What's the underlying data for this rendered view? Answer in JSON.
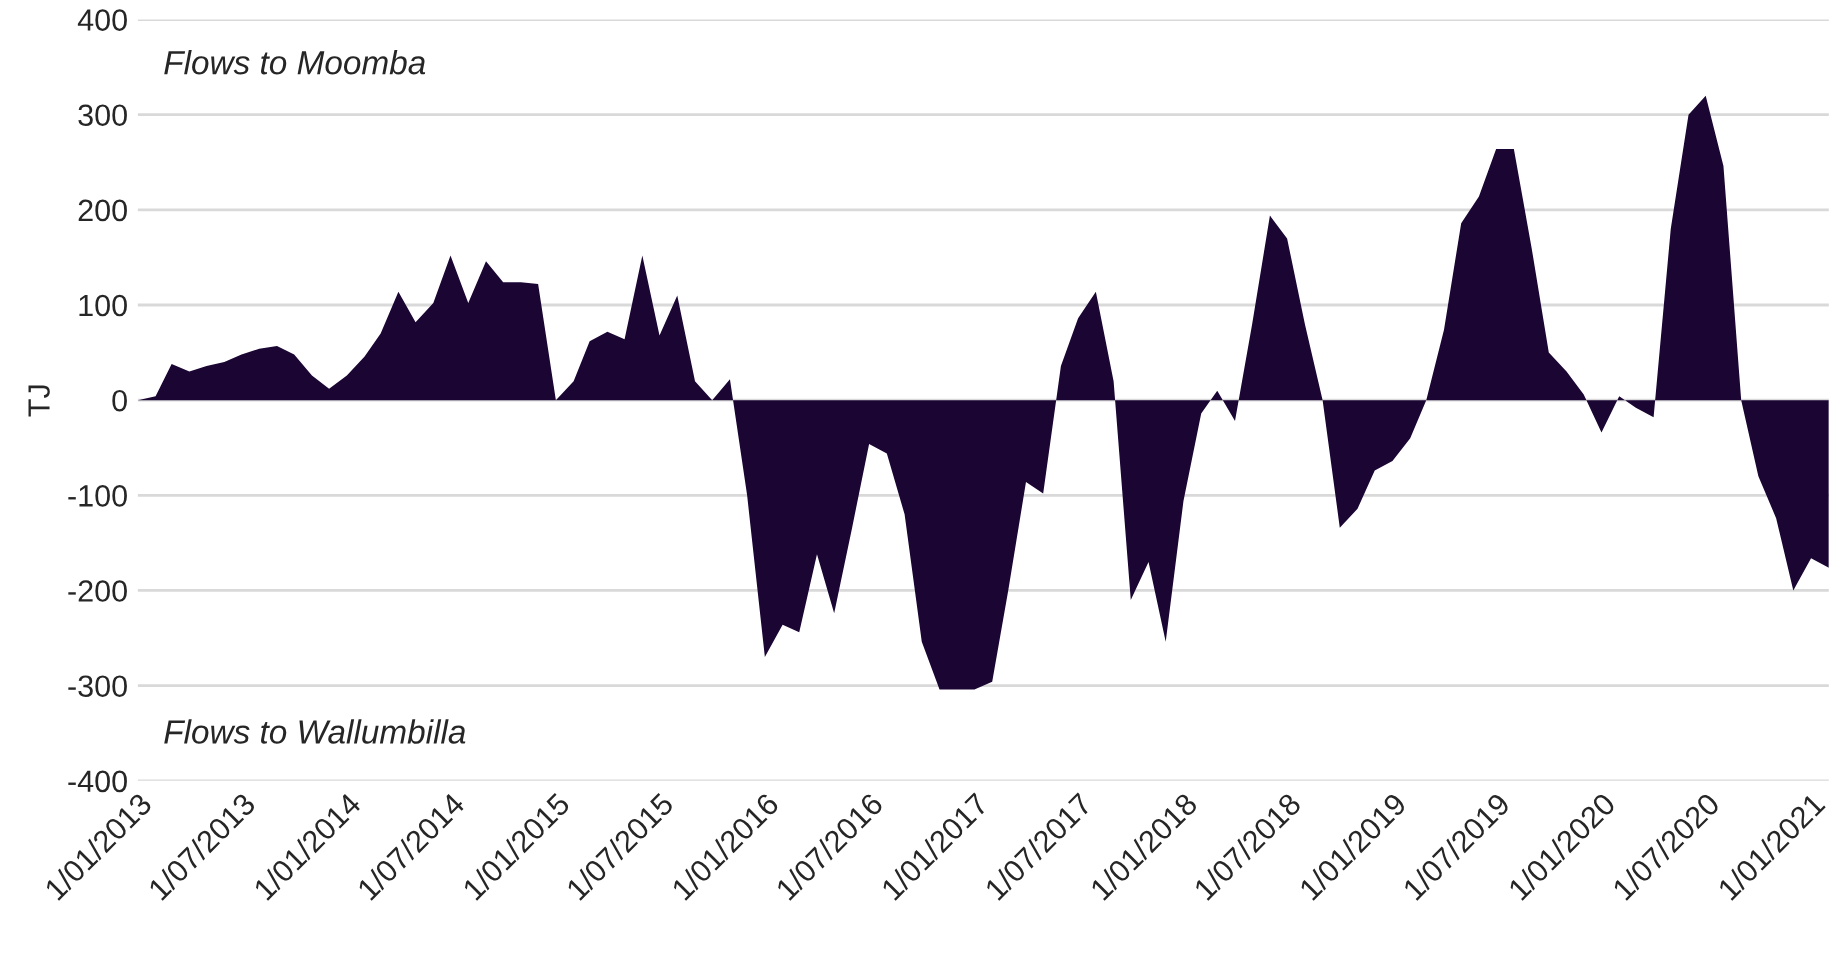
{
  "chart_data": {
    "type": "area",
    "ylabel": "TJ",
    "annotations": [
      "Flows to Moomba",
      "Flows to Wallumbilla"
    ],
    "x": [
      "2013-01",
      "2013-02",
      "2013-03",
      "2013-04",
      "2013-05",
      "2013-06",
      "2013-07",
      "2013-08",
      "2013-09",
      "2013-10",
      "2013-11",
      "2013-12",
      "2014-01",
      "2014-02",
      "2014-03",
      "2014-04",
      "2014-05",
      "2014-06",
      "2014-07",
      "2014-08",
      "2014-09",
      "2014-10",
      "2014-11",
      "2014-12",
      "2015-01",
      "2015-02",
      "2015-03",
      "2015-04",
      "2015-05",
      "2015-06",
      "2015-07",
      "2015-08",
      "2015-09",
      "2015-10",
      "2015-11",
      "2015-12",
      "2016-01",
      "2016-02",
      "2016-03",
      "2016-04",
      "2016-05",
      "2016-06",
      "2016-07",
      "2016-08",
      "2016-09",
      "2016-10",
      "2016-11",
      "2016-12",
      "2017-01",
      "2017-02",
      "2017-03",
      "2017-04",
      "2017-05",
      "2017-06",
      "2017-07",
      "2017-08",
      "2017-09",
      "2017-10",
      "2017-11",
      "2017-12",
      "2018-01",
      "2018-02",
      "2018-03",
      "2018-04",
      "2018-05",
      "2018-06",
      "2018-07",
      "2018-08",
      "2018-09",
      "2018-10",
      "2018-11",
      "2018-12",
      "2019-01",
      "2019-02",
      "2019-03",
      "2019-04",
      "2019-05",
      "2019-06",
      "2019-07",
      "2019-08",
      "2019-09",
      "2019-10",
      "2019-11",
      "2019-12",
      "2020-01",
      "2020-02",
      "2020-03",
      "2020-04",
      "2020-05",
      "2020-06",
      "2020-07",
      "2020-08",
      "2020-09",
      "2020-10",
      "2020-11",
      "2020-12",
      "2021-01",
      "2021-02"
    ],
    "series": [
      {
        "color": "#1a0533",
        "values": [
          0,
          4,
          38,
          30,
          36,
          40,
          48,
          54,
          57,
          48,
          26,
          12,
          26,
          46,
          70,
          114,
          82,
          102,
          152,
          102,
          146,
          124,
          124,
          122,
          0,
          20,
          62,
          72,
          64,
          152,
          68,
          110,
          20,
          0,
          22,
          -100,
          -270,
          -236,
          -244,
          -162,
          -224,
          -135,
          -46,
          -56,
          -120,
          -254,
          -304,
          -304,
          -304,
          -296,
          -200,
          -86,
          -98,
          36,
          86,
          114,
          20,
          -210,
          -170,
          -254,
          -106,
          -14,
          10,
          -22,
          80,
          194,
          170,
          80,
          0,
          -134,
          -114,
          -74,
          -64,
          -40,
          0,
          74,
          186,
          214,
          264,
          264,
          160,
          50,
          30,
          6,
          -34,
          4,
          -8,
          -18,
          180,
          300,
          320,
          246,
          0,
          -80,
          -124,
          -200,
          -166,
          -176
        ]
      }
    ],
    "xlim": [
      "2013-01",
      "2021-02"
    ],
    "xticks": [
      {
        "value": "2013-01",
        "label": "1/01/2013"
      },
      {
        "value": "2013-07",
        "label": "1/07/2013"
      },
      {
        "value": "2014-01",
        "label": "1/01/2014"
      },
      {
        "value": "2014-07",
        "label": "1/07/2014"
      },
      {
        "value": "2015-01",
        "label": "1/01/2015"
      },
      {
        "value": "2015-07",
        "label": "1/07/2015"
      },
      {
        "value": "2016-01",
        "label": "1/01/2016"
      },
      {
        "value": "2016-07",
        "label": "1/07/2016"
      },
      {
        "value": "2017-01",
        "label": "1/01/2017"
      },
      {
        "value": "2017-07",
        "label": "1/07/2017"
      },
      {
        "value": "2018-01",
        "label": "1/01/2018"
      },
      {
        "value": "2018-07",
        "label": "1/07/2018"
      },
      {
        "value": "2019-01",
        "label": "1/01/2019"
      },
      {
        "value": "2019-07",
        "label": "1/07/2019"
      },
      {
        "value": "2020-01",
        "label": "1/01/2020"
      },
      {
        "value": "2020-07",
        "label": "1/07/2020"
      },
      {
        "value": "2021-01",
        "label": "1/01/2021"
      }
    ],
    "ylim": [
      -400,
      400
    ],
    "yticks": [
      -400,
      -300,
      -200,
      -100,
      0,
      100,
      200,
      300,
      400
    ],
    "grid": "y",
    "legend": false
  }
}
